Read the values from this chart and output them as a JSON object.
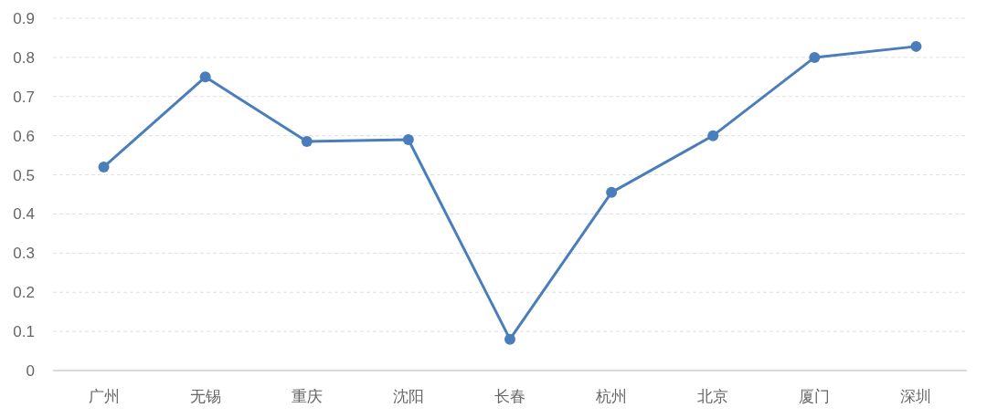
{
  "chart_data": {
    "type": "line",
    "categories": [
      "广州",
      "无锡",
      "重庆",
      "沈阳",
      "长春",
      "杭州",
      "北京",
      "厦门",
      "深圳"
    ],
    "series": [
      {
        "color": "#4a7ebb",
        "values": [
          0.52,
          0.75,
          0.585,
          0.59,
          0.08,
          0.455,
          0.6,
          0.8,
          0.828
        ]
      }
    ],
    "ylim": [
      0,
      0.9
    ],
    "yticks": [
      0,
      0.1,
      0.2,
      0.3,
      0.4,
      0.5,
      0.6,
      0.7,
      0.8,
      0.9
    ],
    "grid": "y",
    "marker": "circle",
    "line_style": "solid"
  }
}
